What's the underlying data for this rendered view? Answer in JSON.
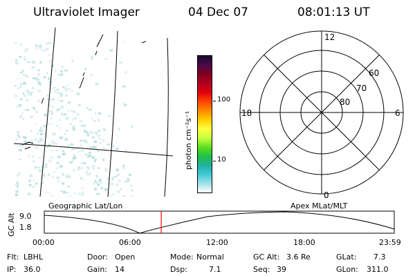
{
  "header": {
    "title": "Ultraviolet Imager",
    "date": "04 Dec 07",
    "time": "08:01:13 UT"
  },
  "colorbar": {
    "unit_label": "photon cm⁻²s⁻¹",
    "ticks": [
      "100",
      "10"
    ],
    "colors": [
      "#1a0a2e",
      "#4a0a4a",
      "#800020",
      "#b00020",
      "#e00010",
      "#ff4400",
      "#ff8800",
      "#ffcc00",
      "#ffff40",
      "#c8ff40",
      "#60e020",
      "#20c040",
      "#20b0a0",
      "#40c8d8",
      "#a0e0e8",
      "#ffffff"
    ]
  },
  "polar": {
    "mlt_labels": {
      "top": "12",
      "left": "18",
      "right": "6",
      "bottom": "0"
    },
    "lat_labels": [
      "60",
      "70",
      "80"
    ]
  },
  "timeline": {
    "left_title": "Geographic Lat/Lon",
    "right_title": "Apex MLat/MLT",
    "axis_label": "GC Alt",
    "y_top": "9.0",
    "y_bottom": "1.8",
    "time_ticks": [
      "00:00",
      "06:00",
      "12:00",
      "18:00",
      "23:59"
    ],
    "current_marker_hour": 8.02
  },
  "info": {
    "row1": [
      {
        "label": "Flt:",
        "value": "LBHL"
      },
      {
        "label": "Door:",
        "value": "Open"
      },
      {
        "label": "Mode:",
        "value": "Normal"
      },
      {
        "label": "GC Alt:",
        "value": "3.6 Re"
      },
      {
        "label": "GLat:",
        "value": "7.3"
      }
    ],
    "row2": [
      {
        "label": "IP:",
        "value": "36.0"
      },
      {
        "label": "Gain:",
        "value": "14"
      },
      {
        "label": "Dsp:",
        "value": "7.1"
      },
      {
        "label": "Seq:",
        "value": "39"
      },
      {
        "label": "GLon:",
        "value": "311.0"
      }
    ]
  }
}
